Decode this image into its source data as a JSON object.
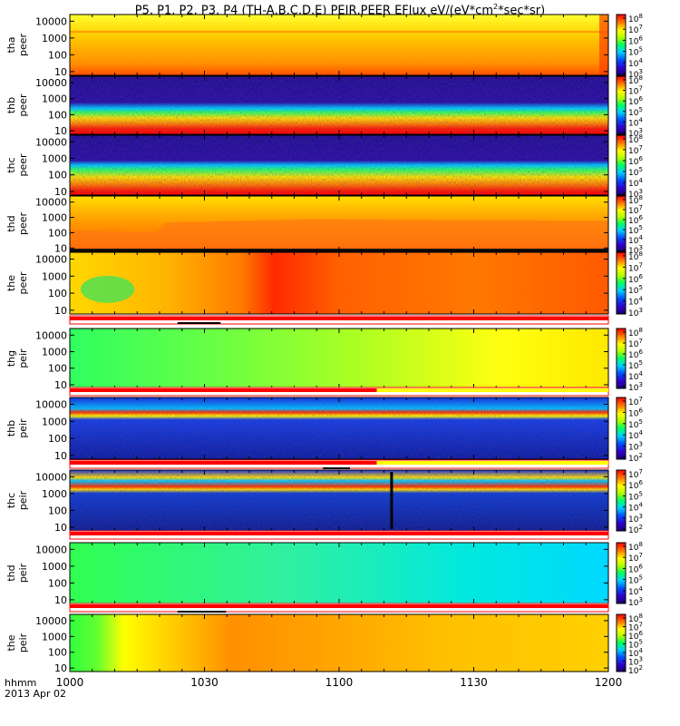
{
  "title": {
    "prefix": "P5, P1, P2, P3, P4 (TH-A,B,C,D,E) PEIR,PEER EFlux eV/(eV*cm",
    "sup": "2",
    "suffix": "*sec*sr)"
  },
  "footer": {
    "hhmm": "hhmm",
    "date": "2013 Apr 02"
  },
  "chart_data": {
    "type": "heatmap",
    "x_ticks": [
      "1000",
      "1030",
      "1100",
      "1130",
      "1200"
    ],
    "x_range": [
      "10:00",
      "12:00"
    ],
    "y_ticks": [
      "10",
      "100",
      "1000",
      "10000"
    ],
    "y_scale": "log",
    "panels": [
      {
        "id": "tha_peer",
        "label": [
          "tha",
          "peer"
        ],
        "colorbar": [
          "3",
          "4",
          "5",
          "6",
          "7",
          "8"
        ]
      },
      {
        "id": "thb_peer",
        "label": [
          "thb",
          "peer"
        ],
        "colorbar": [
          "3",
          "4",
          "5",
          "6",
          "7",
          "8"
        ]
      },
      {
        "id": "thc_peer",
        "label": [
          "thc",
          "peer"
        ],
        "colorbar": [
          "3",
          "4",
          "5",
          "6",
          "7",
          "8"
        ]
      },
      {
        "id": "thd_peer",
        "label": [
          "thd",
          "peer"
        ],
        "colorbar": [
          "3",
          "4",
          "5",
          "6",
          "7",
          "8"
        ]
      },
      {
        "id": "the_peer",
        "label": [
          "the",
          "peer"
        ],
        "colorbar": [
          "3",
          "4",
          "5",
          "6",
          "7",
          "8"
        ]
      },
      {
        "id": "thg_peir",
        "label": [
          "thg",
          "peir"
        ],
        "colorbar": [
          "3",
          "4",
          "5",
          "6",
          "7",
          "8"
        ]
      },
      {
        "id": "thb_peir",
        "label": [
          "thb",
          "peir"
        ],
        "colorbar": [
          "2",
          "3",
          "4",
          "5",
          "6",
          "7"
        ]
      },
      {
        "id": "thc_peir",
        "label": [
          "thc",
          "peir"
        ],
        "colorbar": [
          "2",
          "3",
          "4",
          "5",
          "6",
          "7"
        ]
      },
      {
        "id": "thd_peir",
        "label": [
          "thd",
          "peir"
        ],
        "colorbar": [
          "3",
          "4",
          "5",
          "6",
          "7",
          "8"
        ]
      },
      {
        "id": "the_peir",
        "label": [
          "the",
          "peir"
        ],
        "colorbar": [
          "2",
          "3",
          "4",
          "5",
          "6",
          "7",
          "8"
        ]
      }
    ]
  },
  "colors": {
    "red": "#ff0000",
    "orange": "#ff8c00",
    "yellow": "#ffff00",
    "green": "#00ff00",
    "cyan": "#00ffff",
    "blue": "#0000ff",
    "navy": "#201080"
  }
}
